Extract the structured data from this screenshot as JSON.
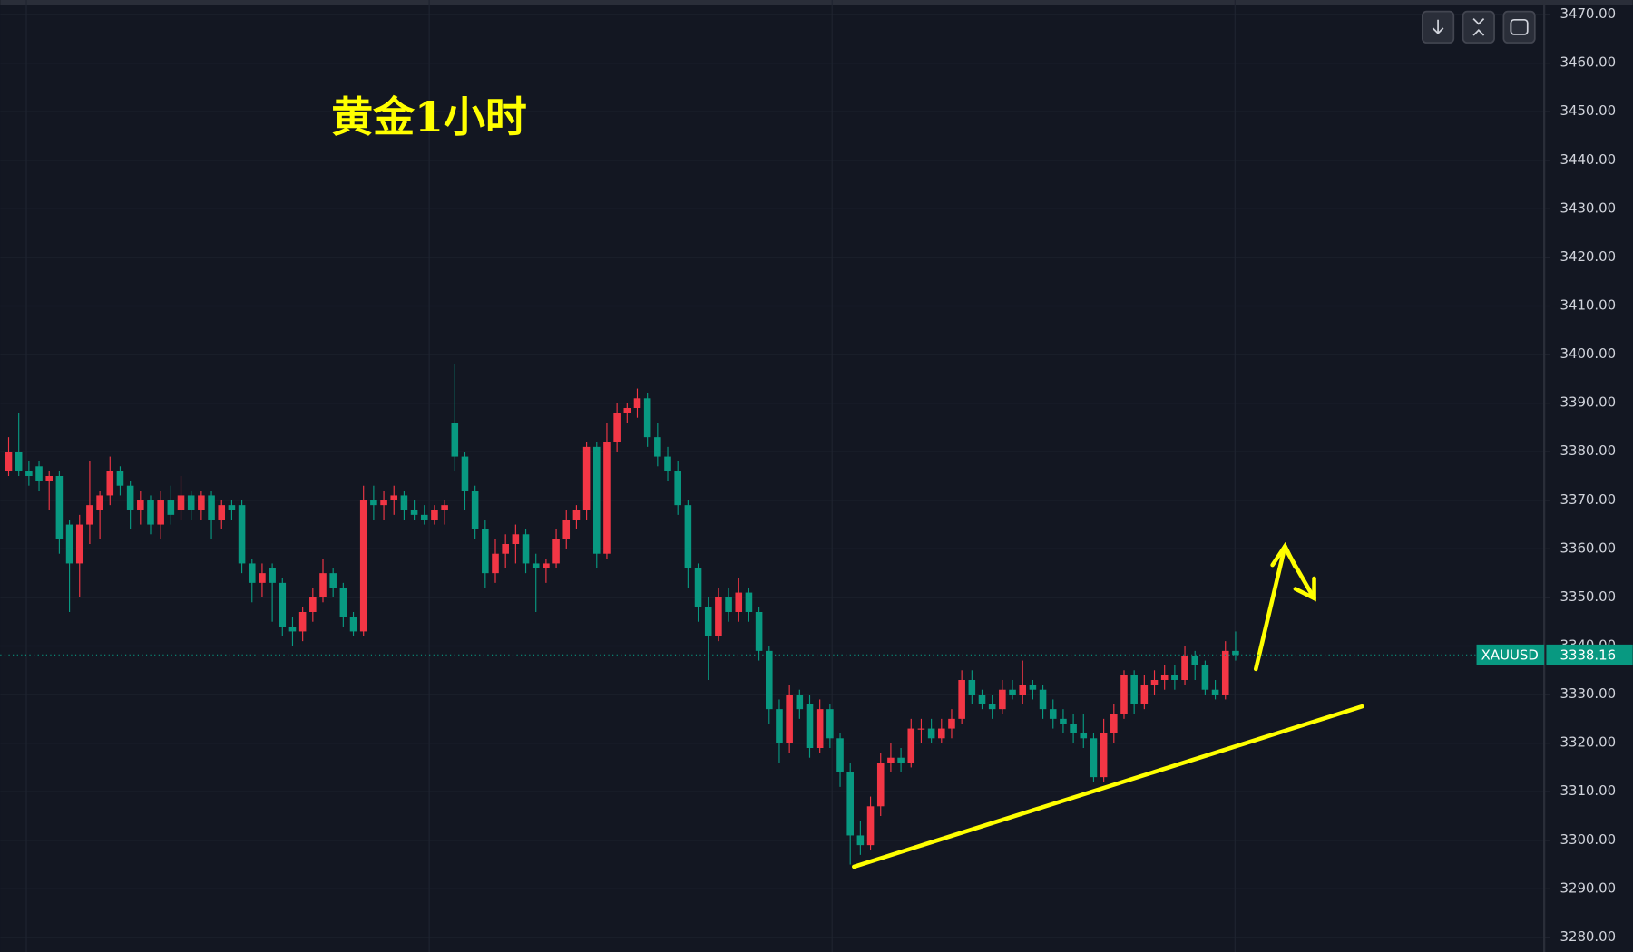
{
  "chart_data": {
    "type": "candlestick",
    "title": "黄金1小时",
    "symbol": "XAUUSD",
    "last_price": 3338.16,
    "up_color": "#f23645",
    "down_color": "#089981",
    "grid": true,
    "ylim": [
      3280,
      3470
    ],
    "yticks": [
      {
        "value": 3280,
        "label": "3280.00"
      },
      {
        "value": 3290,
        "label": "3290.00"
      },
      {
        "value": 3300,
        "label": "3300.00"
      },
      {
        "value": 3310,
        "label": "3310.00"
      },
      {
        "value": 3320,
        "label": "3320.00"
      },
      {
        "value": 3330,
        "label": "3330.00"
      },
      {
        "value": 3340,
        "label": "3340.00"
      },
      {
        "value": 3350,
        "label": "3350.00"
      },
      {
        "value": 3360,
        "label": "3360.00"
      },
      {
        "value": 3370,
        "label": "3370.00"
      },
      {
        "value": 3380,
        "label": "3380.00"
      },
      {
        "value": 3390,
        "label": "3390.00"
      },
      {
        "value": 3400,
        "label": "3400.00"
      },
      {
        "value": 3410,
        "label": "3410.00"
      },
      {
        "value": 3420,
        "label": "3420.00"
      },
      {
        "value": 3430,
        "label": "3430.00"
      },
      {
        "value": 3440,
        "label": "3440.00"
      },
      {
        "value": 3450,
        "label": "3450.00"
      },
      {
        "value": 3460,
        "label": "3460.00"
      },
      {
        "value": 3470,
        "label": "3470.00"
      }
    ],
    "candles": [
      [
        3376,
        3383,
        3375,
        3380
      ],
      [
        3380,
        3388,
        3375,
        3376
      ],
      [
        3376,
        3378,
        3373,
        3375
      ],
      [
        3377,
        3378,
        3372,
        3374
      ],
      [
        3374,
        3376,
        3368,
        3375
      ],
      [
        3375,
        3376,
        3359,
        3362
      ],
      [
        3365,
        3366,
        3347,
        3357
      ],
      [
        3357,
        3367,
        3350,
        3365
      ],
      [
        3365,
        3378,
        3361,
        3369
      ],
      [
        3368,
        3372,
        3362,
        3371
      ],
      [
        3371,
        3379,
        3369,
        3376
      ],
      [
        3376,
        3377,
        3371,
        3373
      ],
      [
        3373,
        3374,
        3364,
        3368
      ],
      [
        3368,
        3372,
        3365,
        3370
      ],
      [
        3370,
        3371,
        3363,
        3365
      ],
      [
        3365,
        3372,
        3362,
        3370
      ],
      [
        3370,
        3373,
        3365,
        3367
      ],
      [
        3368,
        3375,
        3366,
        3371
      ],
      [
        3371,
        3372,
        3366,
        3368
      ],
      [
        3368,
        3372,
        3366,
        3371
      ],
      [
        3371,
        3372,
        3362,
        3366
      ],
      [
        3366,
        3370,
        3364,
        3369
      ],
      [
        3369,
        3370,
        3366,
        3368
      ],
      [
        3369,
        3370,
        3355,
        3357
      ],
      [
        3357,
        3358,
        3349,
        3353
      ],
      [
        3353,
        3357,
        3350,
        3355
      ],
      [
        3356,
        3357,
        3345,
        3353
      ],
      [
        3353,
        3354,
        3342,
        3344
      ],
      [
        3344,
        3346,
        3340,
        3343
      ],
      [
        3343,
        3348,
        3341,
        3347
      ],
      [
        3347,
        3352,
        3345,
        3350
      ],
      [
        3350,
        3358,
        3349,
        3355
      ],
      [
        3355,
        3356,
        3350,
        3352
      ],
      [
        3352,
        3353,
        3344,
        3346
      ],
      [
        3346,
        3347,
        3342,
        3343
      ],
      [
        3343,
        3373,
        3342,
        3370
      ],
      [
        3370,
        3373,
        3366,
        3369
      ],
      [
        3369,
        3372,
        3366,
        3370
      ],
      [
        3370,
        3373,
        3367,
        3371
      ],
      [
        3371,
        3372,
        3366,
        3368
      ],
      [
        3368,
        3370,
        3366,
        3367
      ],
      [
        3367,
        3369,
        3365,
        3366
      ],
      [
        3366,
        3369,
        3365,
        3368
      ],
      [
        3368,
        3370,
        3365,
        3369
      ],
      [
        3386,
        3398,
        3376,
        3379
      ],
      [
        3379,
        3380,
        3368,
        3372
      ],
      [
        3372,
        3373,
        3362,
        3364
      ],
      [
        3364,
        3366,
        3352,
        3355
      ],
      [
        3355,
        3362,
        3353,
        3359
      ],
      [
        3359,
        3363,
        3356,
        3361
      ],
      [
        3361,
        3365,
        3357,
        3363
      ],
      [
        3363,
        3364,
        3355,
        3357
      ],
      [
        3357,
        3359,
        3347,
        3356
      ],
      [
        3356,
        3358,
        3353,
        3357
      ],
      [
        3357,
        3364,
        3356,
        3362
      ],
      [
        3362,
        3368,
        3360,
        3366
      ],
      [
        3366,
        3369,
        3364,
        3368
      ],
      [
        3368,
        3382,
        3366,
        3381
      ],
      [
        3381,
        3382,
        3356,
        3359
      ],
      [
        3359,
        3386,
        3358,
        3382
      ],
      [
        3382,
        3390,
        3380,
        3388
      ],
      [
        3388,
        3390,
        3386,
        3389
      ],
      [
        3389,
        3393,
        3387,
        3391
      ],
      [
        3391,
        3392,
        3381,
        3383
      ],
      [
        3383,
        3386,
        3377,
        3379
      ],
      [
        3379,
        3381,
        3374,
        3376
      ],
      [
        3376,
        3378,
        3367,
        3369
      ],
      [
        3369,
        3370,
        3352,
        3356
      ],
      [
        3356,
        3357,
        3345,
        3348
      ],
      [
        3348,
        3350,
        3333,
        3342
      ],
      [
        3342,
        3352,
        3341,
        3350
      ],
      [
        3350,
        3352,
        3345,
        3347
      ],
      [
        3347,
        3354,
        3345,
        3351
      ],
      [
        3351,
        3352,
        3345,
        3347
      ],
      [
        3347,
        3348,
        3337,
        3339
      ],
      [
        3339,
        3340,
        3324,
        3327
      ],
      [
        3327,
        3329,
        3316,
        3320
      ],
      [
        3320,
        3332,
        3318,
        3330
      ],
      [
        3330,
        3331,
        3325,
        3327
      ],
      [
        3328,
        3330,
        3317,
        3319
      ],
      [
        3319,
        3329,
        3318,
        3327
      ],
      [
        3327,
        3328,
        3319,
        3321
      ],
      [
        3321,
        3322,
        3311,
        3314
      ],
      [
        3314,
        3316,
        3295,
        3301
      ],
      [
        3301,
        3304,
        3297,
        3299
      ],
      [
        3299,
        3309,
        3298,
        3307
      ],
      [
        3307,
        3318,
        3305,
        3316
      ],
      [
        3316,
        3320,
        3314,
        3317
      ],
      [
        3317,
        3319,
        3314,
        3316
      ],
      [
        3316,
        3325,
        3315,
        3323
      ],
      [
        3323,
        3325,
        3320,
        3323
      ],
      [
        3323,
        3325,
        3320,
        3321
      ],
      [
        3321,
        3325,
        3320,
        3323
      ],
      [
        3323,
        3327,
        3321,
        3325
      ],
      [
        3325,
        3335,
        3324,
        3333
      ],
      [
        3333,
        3335,
        3328,
        3330
      ],
      [
        3330,
        3331,
        3327,
        3328
      ],
      [
        3328,
        3330,
        3325,
        3327
      ],
      [
        3327,
        3333,
        3326,
        3331
      ],
      [
        3331,
        3333,
        3329,
        3330
      ],
      [
        3330,
        3337,
        3328,
        3332
      ],
      [
        3332,
        3333,
        3329,
        3331
      ],
      [
        3331,
        3332,
        3325,
        3327
      ],
      [
        3327,
        3329,
        3323,
        3325
      ],
      [
        3325,
        3327,
        3322,
        3324
      ],
      [
        3324,
        3326,
        3320,
        3322
      ],
      [
        3322,
        3326,
        3319,
        3321
      ],
      [
        3321,
        3322,
        3312,
        3313
      ],
      [
        3313,
        3325,
        3312,
        3322
      ],
      [
        3322,
        3328,
        3320,
        3326
      ],
      [
        3326,
        3335,
        3325,
        3334
      ],
      [
        3334,
        3335,
        3326,
        3328
      ],
      [
        3328,
        3334,
        3327,
        3332
      ],
      [
        3332,
        3335,
        3330,
        3333
      ],
      [
        3333,
        3336,
        3331,
        3334
      ],
      [
        3334,
        3336,
        3331,
        3333
      ],
      [
        3333,
        3340,
        3332,
        3338
      ],
      [
        3338,
        3339,
        3333,
        3336
      ],
      [
        3336,
        3337,
        3330,
        3331
      ],
      [
        3331,
        3333,
        3329,
        3330
      ],
      [
        3330,
        3341,
        3329,
        3339
      ],
      [
        3339,
        3343,
        3337,
        3338.16
      ]
    ]
  }
}
